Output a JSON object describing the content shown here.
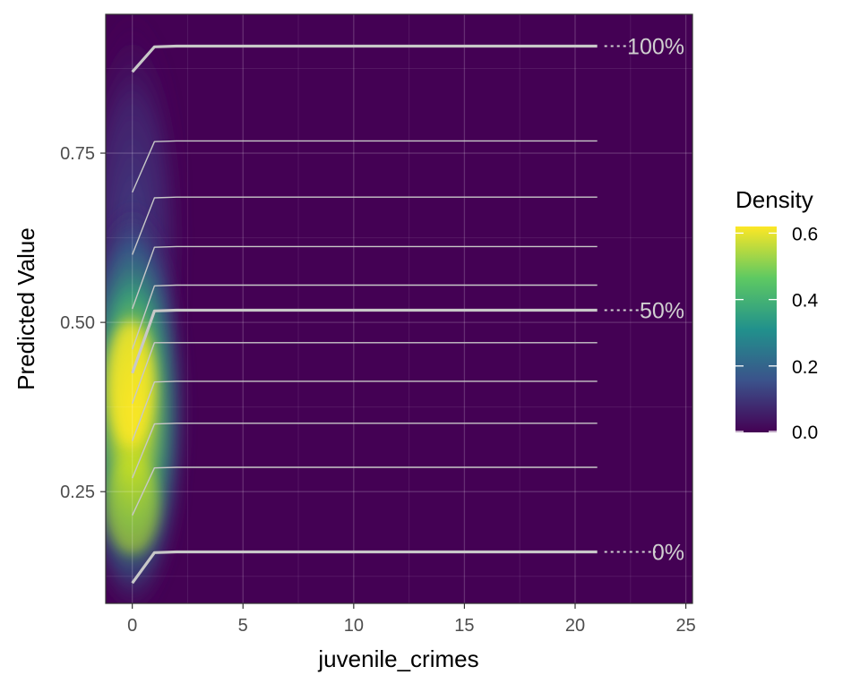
{
  "chart_data": {
    "type": "heatmap",
    "xlabel": "juvenile_crimes",
    "ylabel": "Predicted Value",
    "xlim": [
      -1.2,
      25.3
    ],
    "ylim": [
      0.085,
      0.955
    ],
    "x_ticks": [
      {
        "value": 0,
        "label": "0"
      },
      {
        "value": 5,
        "label": "5"
      },
      {
        "value": 10,
        "label": "10"
      },
      {
        "value": 15,
        "label": "15"
      },
      {
        "value": 20,
        "label": "20"
      },
      {
        "value": 25,
        "label": "25"
      }
    ],
    "y_ticks": [
      {
        "value": 0.25,
        "label": "0.25"
      },
      {
        "value": 0.5,
        "label": "0.50"
      },
      {
        "value": 0.75,
        "label": "0.75"
      }
    ],
    "grid": true,
    "background": "viridis density of predicted value vs juvenile_crimes",
    "legend": {
      "title": "Density",
      "position": "right",
      "min": 0.0,
      "max": 0.62,
      "ticks": [
        {
          "value": 0.0,
          "label": "0.0"
        },
        {
          "value": 0.2,
          "label": "0.2"
        },
        {
          "value": 0.4,
          "label": "0.4"
        },
        {
          "value": 0.6,
          "label": "0.6"
        }
      ],
      "colors": [
        "#440154",
        "#3b528b",
        "#21918c",
        "#5ec962",
        "#fde725"
      ]
    },
    "x": [
      0,
      1,
      2,
      21
    ],
    "series": [
      {
        "label": "0%",
        "major": true,
        "values": [
          0.115,
          0.16,
          0.161,
          0.161
        ]
      },
      {
        "label": "",
        "major": false,
        "values": [
          0.215,
          0.285,
          0.286,
          0.286
        ]
      },
      {
        "label": "",
        "major": false,
        "values": [
          0.27,
          0.35,
          0.351,
          0.351
        ]
      },
      {
        "label": "",
        "major": false,
        "values": [
          0.325,
          0.412,
          0.413,
          0.413
        ]
      },
      {
        "label": "",
        "major": false,
        "values": [
          0.38,
          0.47,
          0.47,
          0.47
        ]
      },
      {
        "label": "50%",
        "major": true,
        "values": [
          0.425,
          0.517,
          0.518,
          0.518
        ]
      },
      {
        "label": "",
        "major": false,
        "values": [
          0.46,
          0.554,
          0.555,
          0.555
        ]
      },
      {
        "label": "",
        "major": false,
        "values": [
          0.52,
          0.611,
          0.612,
          0.612
        ]
      },
      {
        "label": "",
        "major": false,
        "values": [
          0.6,
          0.684,
          0.685,
          0.685
        ]
      },
      {
        "label": "",
        "major": false,
        "values": [
          0.692,
          0.767,
          0.768,
          0.768
        ]
      },
      {
        "label": "100%",
        "major": true,
        "values": [
          0.87,
          0.907,
          0.908,
          0.908
        ]
      }
    ],
    "line_color": "#c8c8c8",
    "label_color": "#d0d0d0"
  }
}
